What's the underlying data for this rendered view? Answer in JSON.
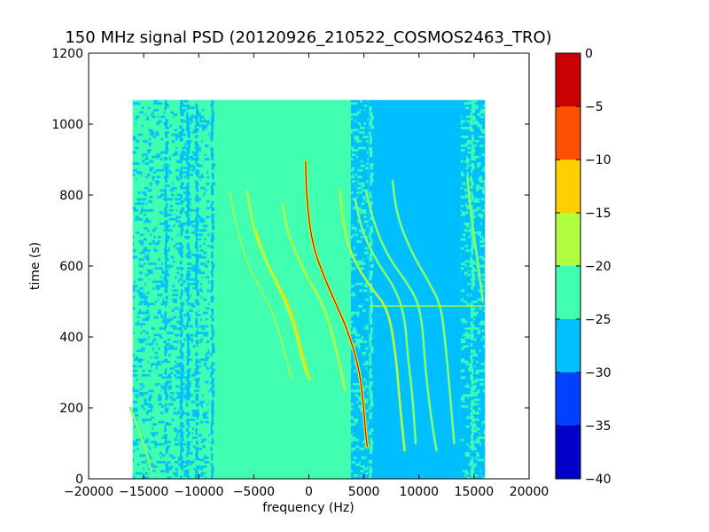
{
  "chart_data": {
    "type": "heatmap",
    "title": "150 MHz signal PSD (20120926_210522_COSMOS2463_TRO)",
    "xlabel": "frequency (Hz)",
    "ylabel": "time (s)",
    "xlim": [
      -20000,
      20000
    ],
    "ylim": [
      0,
      1200
    ],
    "xticks": [
      -20000,
      -15000,
      -10000,
      -5000,
      0,
      5000,
      10000,
      15000,
      20000
    ],
    "xtick_labels": [
      "−20000",
      "−15000",
      "−10000",
      "−5000",
      "0",
      "5000",
      "10000",
      "15000",
      "20000"
    ],
    "yticks": [
      0,
      200,
      400,
      600,
      800,
      1000,
      1200
    ],
    "ytick_labels": [
      "0",
      "200",
      "400",
      "600",
      "800",
      "1000",
      "1200"
    ],
    "data_extent": {
      "freq_min": -16000,
      "freq_max": 16000,
      "time_min": 0,
      "time_max": 1068
    },
    "background_levels": [
      {
        "freq_from": -16000,
        "freq_to": -9000,
        "level_db": -23,
        "texture": "noisy"
      },
      {
        "freq_from": -9000,
        "freq_to": 3800,
        "level_db": -22.5,
        "texture": "smooth"
      },
      {
        "freq_from": 3800,
        "freq_to": 5400,
        "level_db": -27,
        "texture": "noisy"
      },
      {
        "freq_from": 5400,
        "freq_to": 13800,
        "level_db": -27.5,
        "texture": "smooth"
      },
      {
        "freq_from": 13800,
        "freq_to": 16000,
        "level_db": -27,
        "texture": "noisy"
      }
    ],
    "vertical_stripes": [
      {
        "freq": -13000,
        "level_db": -27
      },
      {
        "freq": -11600,
        "level_db": -27.5
      },
      {
        "freq": -11000,
        "level_db": -27
      },
      {
        "freq": -10200,
        "level_db": -26.5
      },
      {
        "freq": -8800,
        "level_db": -26
      },
      {
        "freq": 5600,
        "level_db": -20.5
      },
      {
        "freq": 14800,
        "level_db": -22
      }
    ],
    "horizontal_line": {
      "time": 487,
      "freq_from": 5500,
      "freq_to": 16000,
      "level_db": -20
    },
    "traces": [
      {
        "name": "",
        "level_db": -4,
        "points": [
          [
            -300,
            895
          ],
          [
            -200,
            790
          ],
          [
            300,
            660
          ],
          [
            1500,
            560
          ],
          [
            2500,
            490
          ],
          [
            3500,
            420
          ],
          [
            4500,
            320
          ],
          [
            4900,
            230
          ],
          [
            5150,
            130
          ],
          [
            5300,
            90
          ]
        ]
      },
      {
        "name": "",
        "level_db": -16,
        "points": [
          [
            -2400,
            775
          ],
          [
            -2000,
            700
          ],
          [
            -800,
            610
          ],
          [
            0,
            560
          ],
          [
            1500,
            480
          ],
          [
            2600,
            350
          ],
          [
            3300,
            250
          ]
        ]
      },
      {
        "name": "",
        "level_db": -15,
        "points": [
          [
            -4800,
            700
          ],
          [
            -4000,
            620
          ],
          [
            -2800,
            550
          ],
          [
            -1500,
            470
          ],
          [
            -500,
            340
          ],
          [
            100,
            280
          ]
        ]
      },
      {
        "name": "",
        "level_db": -17,
        "points": [
          [
            -5600,
            810
          ],
          [
            -5000,
            700
          ],
          [
            -3900,
            610
          ],
          [
            -2600,
            530
          ],
          [
            -1400,
            440
          ],
          [
            -500,
            320
          ],
          [
            0,
            280
          ]
        ]
      },
      {
        "name": "",
        "level_db": -18,
        "points": [
          [
            -7200,
            810
          ],
          [
            -6500,
            700
          ],
          [
            -5500,
            600
          ],
          [
            -4300,
            530
          ],
          [
            -3000,
            450
          ],
          [
            -2000,
            330
          ],
          [
            -1500,
            280
          ]
        ]
      },
      {
        "name": "",
        "level_db": -16,
        "points": [
          [
            2800,
            815
          ],
          [
            3200,
            700
          ],
          [
            4000,
            620
          ],
          [
            5600,
            540
          ],
          [
            7200,
            480
          ],
          [
            7900,
            350
          ],
          [
            8300,
            200
          ],
          [
            8700,
            80
          ]
        ]
      },
      {
        "name": "",
        "level_db": -18,
        "points": [
          [
            4200,
            790
          ],
          [
            4800,
            700
          ],
          [
            6200,
            610
          ],
          [
            7800,
            540
          ],
          [
            8700,
            460
          ],
          [
            9000,
            340
          ],
          [
            9400,
            240
          ],
          [
            9700,
            100
          ]
        ]
      },
      {
        "name": "",
        "level_db": -18,
        "points": [
          [
            5200,
            810
          ],
          [
            6000,
            710
          ],
          [
            7300,
            620
          ],
          [
            9000,
            550
          ],
          [
            10200,
            480
          ],
          [
            10600,
            300
          ],
          [
            11200,
            150
          ],
          [
            11600,
            80
          ]
        ]
      },
      {
        "name": "",
        "level_db": -19,
        "points": [
          [
            7600,
            840
          ],
          [
            8000,
            740
          ],
          [
            9300,
            640
          ],
          [
            10800,
            560
          ],
          [
            12000,
            490
          ],
          [
            12400,
            380
          ],
          [
            12800,
            250
          ],
          [
            13200,
            100
          ]
        ]
      },
      {
        "name": "",
        "level_db": -19,
        "points": [
          [
            -16200,
            200
          ],
          [
            -15600,
            150
          ],
          [
            -14800,
            80
          ],
          [
            -14200,
            10
          ]
        ]
      },
      {
        "name": "",
        "level_db": -19,
        "points": [
          [
            14400,
            850
          ],
          [
            14700,
            750
          ],
          [
            15300,
            620
          ],
          [
            15800,
            500
          ]
        ]
      }
    ],
    "colorbar": {
      "min": -40,
      "max": 0,
      "boundaries": [
        -40,
        -35,
        -30,
        -25,
        -20,
        -15,
        -10,
        -5,
        0
      ],
      "colors": [
        "#0000c8",
        "#0040ff",
        "#00bfff",
        "#40ffb0",
        "#b0ff40",
        "#ffd000",
        "#ff5000",
        "#c80000"
      ],
      "tick_labels": [
        "−40",
        "−35",
        "−30",
        "−25",
        "−20",
        "−15",
        "−10",
        "−5",
        "0"
      ]
    }
  }
}
